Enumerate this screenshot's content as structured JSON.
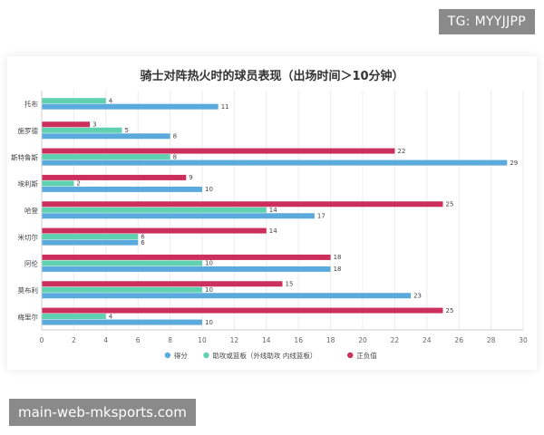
{
  "watermarks": {
    "top_right": "TG: MYYJJPP",
    "bottom_left": "main-web-mksports.com"
  },
  "colors": {
    "points": "#5aaade",
    "assists_rebounds": "#5fd1b0",
    "plus_minus": "#cc2f5c"
  },
  "chart_data": {
    "type": "bar",
    "orientation": "horizontal",
    "title": "骑士对阵热火时的球员表现（出场时间＞10分钟）",
    "xlabel": "",
    "ylabel": "",
    "xlim": [
      0,
      30
    ],
    "xticks": [
      0,
      2,
      4,
      6,
      8,
      10,
      12,
      14,
      16,
      18,
      20,
      22,
      24,
      26,
      28,
      30
    ],
    "grid": true,
    "legend_position": "bottom",
    "categories": [
      "托布",
      "施罗德",
      "斯特鲁斯",
      "埃利斯",
      "哈登",
      "米切尔",
      "阿伦",
      "莫布利",
      "梅里尔"
    ],
    "series": [
      {
        "name": "得分",
        "color": "#5aaade",
        "values": [
          11,
          8,
          29,
          10,
          17,
          6,
          18,
          23,
          10
        ]
      },
      {
        "name": "助攻或篮板（外线助攻 内线篮板）",
        "color": "#5fd1b0",
        "values": [
          4,
          5,
          8,
          2,
          14,
          6,
          10,
          10,
          4
        ]
      },
      {
        "name": "正负值",
        "color": "#cc2f5c",
        "values": [
          null,
          3,
          22,
          9,
          25,
          14,
          18,
          15,
          25
        ]
      }
    ]
  }
}
